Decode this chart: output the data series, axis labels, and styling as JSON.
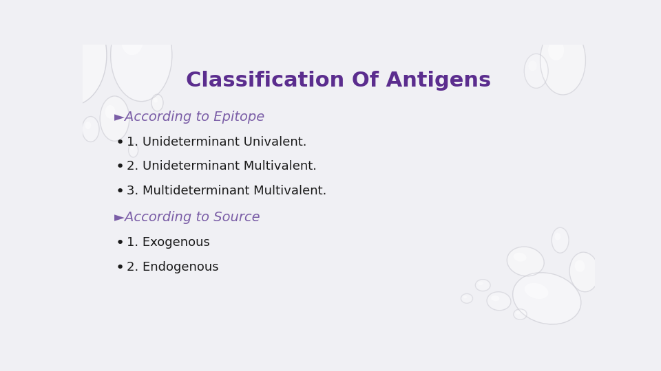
{
  "title": "Classification Of Antigens",
  "title_color": "#5B2D8E",
  "title_fontsize": 22,
  "background_color": "#F0F0F4",
  "heading1": "►According to Epitope",
  "heading2": "►According to Source",
  "heading_color": "#7B5EA7",
  "heading_fontsize": 14,
  "bullet_items1": [
    "1. Unideterminant Univalent.",
    "2. Unideterminant Multivalent.",
    "3. Multideterminant Multivalent."
  ],
  "bullet_items2": [
    "1. Exogenous",
    "2. Endogenous"
  ],
  "bullet_color": "#1a1a1a",
  "bullet_fontsize": 13,
  "bullet_marker": "•"
}
